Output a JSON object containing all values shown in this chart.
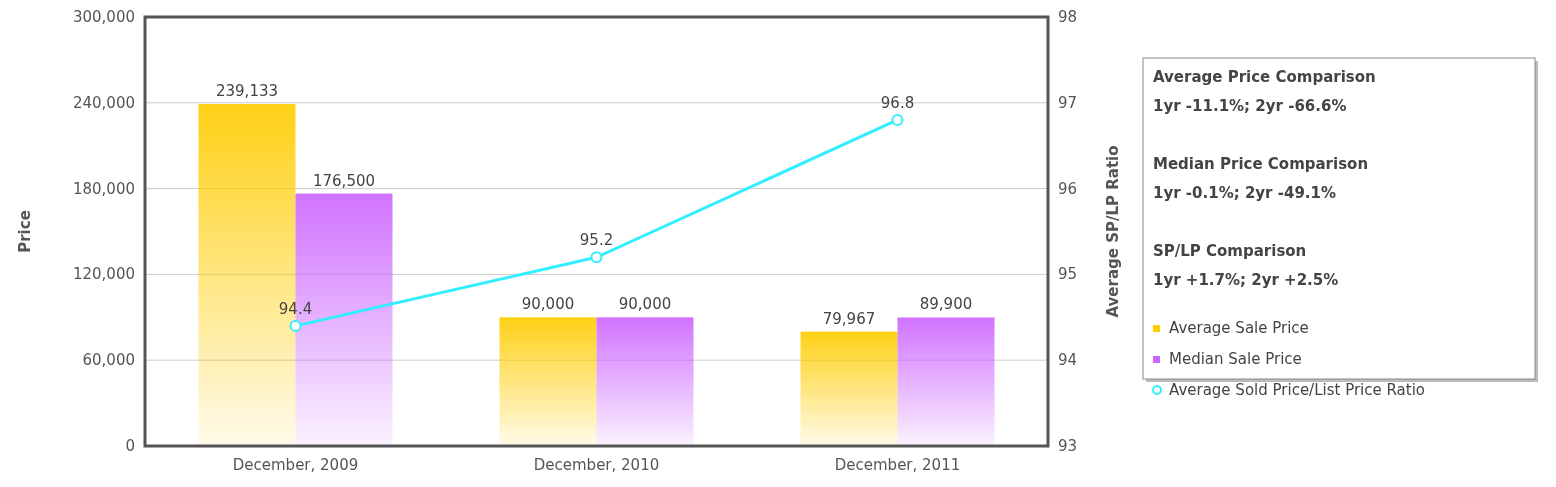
{
  "chart_data": {
    "type": "bar",
    "ylabel": "Price",
    "y2label": "Average SP/LP Ratio",
    "categories": [
      "December, 2009",
      "December, 2010",
      "December, 2011"
    ],
    "series": [
      {
        "name": "Average Sale Price",
        "color": "#ffcc00",
        "values": [
          239133,
          90000,
          79967
        ],
        "value_labels": [
          "239,133",
          "90,000",
          "79,967"
        ]
      },
      {
        "name": "Median Sale Price",
        "color": "#cc66ff",
        "values": [
          176500,
          90000,
          89900
        ],
        "value_labels": [
          "176,500",
          "90,000",
          "89,900"
        ]
      },
      {
        "name": "Average Sold Price/List Price Ratio",
        "type": "line",
        "axis": "y2",
        "color": "#33eeff",
        "values": [
          94.4,
          95.2,
          96.8
        ]
      }
    ],
    "ylim": [
      0,
      300000
    ],
    "yticks": [
      {
        "value": 0,
        "label": "0"
      },
      {
        "value": 60000,
        "label": "60,000"
      },
      {
        "value": 120000,
        "label": "120,000"
      },
      {
        "value": 180000,
        "label": "180,000"
      },
      {
        "value": 240000,
        "label": "240,000"
      },
      {
        "value": 300000,
        "label": "300,000"
      }
    ],
    "y2lim": [
      93,
      98
    ],
    "y2ticks": [
      93,
      94,
      95,
      96,
      97,
      98
    ],
    "grid": "y",
    "legend": "right",
    "marker": "circle",
    "data_labels": true,
    "annotations": [
      "Average Price Comparison",
      "1yr -11.1%; 2yr -66.6%",
      "Median Price Comparison",
      "1yr -0.1%; 2yr -49.1%",
      "SP/LP Comparison",
      "1yr +1.7%; 2yr +2.5%"
    ]
  }
}
